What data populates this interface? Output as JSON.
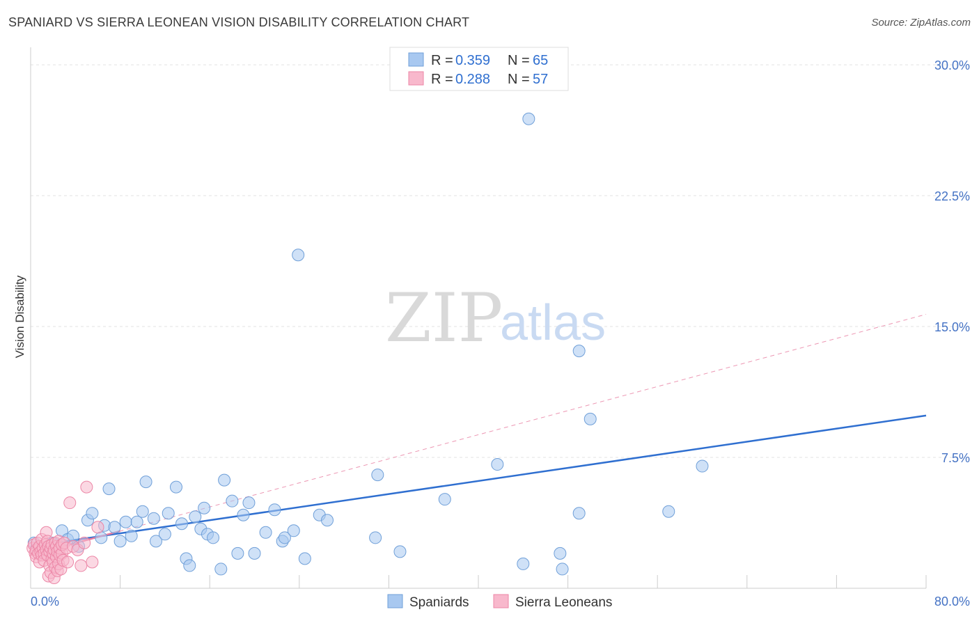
{
  "header": {
    "title": "SPANIARD VS SIERRA LEONEAN VISION DISABILITY CORRELATION CHART",
    "source": "Source: ZipAtlas.com"
  },
  "watermark": {
    "zip": "ZIP",
    "atlas": "atlas"
  },
  "legend": {
    "rows": [
      {
        "r_label": "R = ",
        "r_value": "0.359",
        "n_label": "N = ",
        "n_value": "65",
        "color": "#a8c8f0"
      },
      {
        "r_label": "R = ",
        "r_value": "0.288",
        "n_label": "N = ",
        "n_value": "57",
        "color": "#f8b8cc"
      }
    ]
  },
  "bottom_legend": [
    {
      "label": "Spaniards",
      "color": "#a8c8f0"
    },
    {
      "label": "Sierra Leoneans",
      "color": "#f8b8cc"
    }
  ],
  "chart_data": {
    "type": "scatter",
    "ylabel": "Vision Disability",
    "xlim": [
      0,
      80
    ],
    "ylim": [
      0,
      31
    ],
    "x_tick_labels": {
      "min": "0.0%",
      "max": "80.0%"
    },
    "y_ticks": [
      {
        "value": 7.5,
        "label": "7.5%"
      },
      {
        "value": 15.0,
        "label": "15.0%"
      },
      {
        "value": 22.5,
        "label": "22.5%"
      },
      {
        "value": 30.0,
        "label": "30.0%"
      }
    ],
    "grid": true,
    "series": [
      {
        "name": "Spaniards",
        "color": "#a8c8f0",
        "stroke": "#6f9fd8",
        "points": [
          [
            0.3,
            2.6
          ],
          [
            0.6,
            2.3
          ],
          [
            1.0,
            2.2
          ],
          [
            1.5,
            2.4
          ],
          [
            2.0,
            2.6
          ],
          [
            2.3,
            2.5
          ],
          [
            2.8,
            3.3
          ],
          [
            3.3,
            2.8
          ],
          [
            3.8,
            3.0
          ],
          [
            4.3,
            2.4
          ],
          [
            5.1,
            3.9
          ],
          [
            5.5,
            4.3
          ],
          [
            6.3,
            2.9
          ],
          [
            6.6,
            3.6
          ],
          [
            7.0,
            5.7
          ],
          [
            7.5,
            3.5
          ],
          [
            8.0,
            2.7
          ],
          [
            8.5,
            3.8
          ],
          [
            9.0,
            3.0
          ],
          [
            9.5,
            3.8
          ],
          [
            10.0,
            4.4
          ],
          [
            10.3,
            6.1
          ],
          [
            11.0,
            4.0
          ],
          [
            11.2,
            2.7
          ],
          [
            12.0,
            3.1
          ],
          [
            12.3,
            4.3
          ],
          [
            13.0,
            5.8
          ],
          [
            13.5,
            3.7
          ],
          [
            13.9,
            1.7
          ],
          [
            14.2,
            1.3
          ],
          [
            14.7,
            4.1
          ],
          [
            15.2,
            3.4
          ],
          [
            15.5,
            4.6
          ],
          [
            15.8,
            3.1
          ],
          [
            16.3,
            2.9
          ],
          [
            17.0,
            1.1
          ],
          [
            17.3,
            6.2
          ],
          [
            18.0,
            5.0
          ],
          [
            18.5,
            2.0
          ],
          [
            19.0,
            4.2
          ],
          [
            19.5,
            4.9
          ],
          [
            20.0,
            2.0
          ],
          [
            21.0,
            3.2
          ],
          [
            21.8,
            4.5
          ],
          [
            22.5,
            2.7
          ],
          [
            22.7,
            2.9
          ],
          [
            23.5,
            3.3
          ],
          [
            23.9,
            19.1
          ],
          [
            24.5,
            1.7
          ],
          [
            25.8,
            4.2
          ],
          [
            26.5,
            3.9
          ],
          [
            30.8,
            2.9
          ],
          [
            31.0,
            6.5
          ],
          [
            33.0,
            2.1
          ],
          [
            37.0,
            5.1
          ],
          [
            41.7,
            7.1
          ],
          [
            44.5,
            26.9
          ],
          [
            44.0,
            1.4
          ],
          [
            47.3,
            2.0
          ],
          [
            47.5,
            1.1
          ],
          [
            49.0,
            13.6
          ],
          [
            49.0,
            4.3
          ],
          [
            50.0,
            9.7
          ],
          [
            57.0,
            4.4
          ],
          [
            60.0,
            7.0
          ]
        ]
      },
      {
        "name": "Sierra Leoneans",
        "color": "#f8b8cc",
        "stroke": "#ec86a6",
        "points": [
          [
            0.2,
            2.3
          ],
          [
            0.3,
            2.5
          ],
          [
            0.4,
            2.0
          ],
          [
            0.5,
            1.8
          ],
          [
            0.5,
            2.2
          ],
          [
            0.6,
            2.6
          ],
          [
            0.7,
            2.0
          ],
          [
            0.8,
            2.4
          ],
          [
            0.8,
            1.5
          ],
          [
            0.9,
            2.1
          ],
          [
            1.0,
            2.8
          ],
          [
            1.0,
            1.9
          ],
          [
            1.1,
            2.3
          ],
          [
            1.2,
            2.0
          ],
          [
            1.2,
            1.6
          ],
          [
            1.3,
            2.5
          ],
          [
            1.4,
            2.2
          ],
          [
            1.4,
            3.2
          ],
          [
            1.5,
            1.9
          ],
          [
            1.5,
            2.7
          ],
          [
            1.6,
            2.4
          ],
          [
            1.6,
            0.7
          ],
          [
            1.7,
            2.1
          ],
          [
            1.7,
            1.3
          ],
          [
            1.8,
            2.3
          ],
          [
            1.8,
            0.9
          ],
          [
            1.9,
            1.7
          ],
          [
            1.9,
            2.5
          ],
          [
            2.0,
            1.5
          ],
          [
            2.0,
            2.0
          ],
          [
            2.1,
            2.2
          ],
          [
            2.1,
            0.6
          ],
          [
            2.2,
            1.2
          ],
          [
            2.2,
            2.6
          ],
          [
            2.3,
            1.8
          ],
          [
            2.3,
            2.4
          ],
          [
            2.4,
            1.0
          ],
          [
            2.4,
            2.1
          ],
          [
            2.5,
            1.4
          ],
          [
            2.5,
            2.7
          ],
          [
            2.6,
            1.9
          ],
          [
            2.6,
            2.3
          ],
          [
            2.7,
            1.1
          ],
          [
            2.8,
            2.0
          ],
          [
            2.8,
            2.5
          ],
          [
            2.9,
            1.6
          ],
          [
            3.0,
            2.6
          ],
          [
            3.2,
            2.3
          ],
          [
            3.3,
            1.5
          ],
          [
            3.5,
            4.9
          ],
          [
            3.8,
            2.4
          ],
          [
            4.2,
            2.2
          ],
          [
            4.5,
            1.3
          ],
          [
            4.8,
            2.6
          ],
          [
            5.0,
            5.8
          ],
          [
            5.5,
            1.5
          ],
          [
            6.0,
            3.5
          ]
        ]
      }
    ],
    "trendlines": [
      {
        "series": "Spaniards",
        "x": [
          0,
          80
        ],
        "y": [
          2.4,
          9.9
        ],
        "style": "solid",
        "color": "#2f6fd0"
      },
      {
        "series": "Sierra Leoneans",
        "x": [
          0,
          80
        ],
        "y": [
          1.9,
          15.7
        ],
        "style": "dashed",
        "color": "#e87ca0"
      }
    ]
  }
}
